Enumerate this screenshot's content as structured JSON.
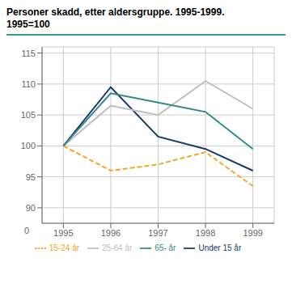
{
  "chart_data": {
    "type": "line",
    "title": "Personer skadd, etter aldersgruppe. 1995-1999.",
    "subtitle": "1995=100",
    "x": [
      1995,
      1996,
      1997,
      1998,
      1999
    ],
    "series": [
      {
        "name": "Under 15 år",
        "color": "#1a3a6b",
        "line_style": "solid",
        "values": [
          100,
          109.5,
          101.5,
          99.5,
          96
        ]
      },
      {
        "name": "15-24 år",
        "color": "#f5a623",
        "line_style": "dashed",
        "values": [
          100,
          96,
          97,
          99,
          93.5
        ]
      },
      {
        "name": "25-64 år",
        "color": "#c0c0c0",
        "line_style": "solid",
        "values": [
          100,
          106.5,
          105,
          110.5,
          106
        ]
      },
      {
        "name": "65- år",
        "color": "#2e8b8b",
        "line_style": "solid",
        "values": [
          100,
          108.5,
          107,
          105.5,
          99.5
        ]
      }
    ],
    "xlim": [
      1994.55,
      1999.45
    ],
    "xticks": [
      1995,
      1996,
      1997,
      1998,
      1999
    ],
    "ylim": [
      87.5,
      116
    ],
    "yticks": [
      90,
      95,
      100,
      105,
      110,
      115
    ],
    "grid": true,
    "legend": "bottom",
    "annotations": [
      "0"
    ]
  }
}
